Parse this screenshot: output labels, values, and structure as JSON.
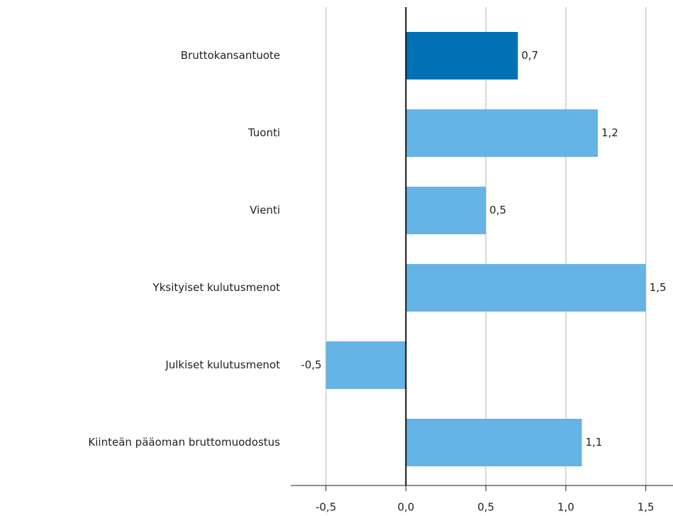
{
  "chart_data": {
    "type": "bar",
    "orientation": "horizontal",
    "categories": [
      "Bruttokansantuote",
      "Tuonti",
      "Vienti",
      "Yksityiset kulutusmenot",
      "Julkiset kulutusmenot",
      "Kiinteän pääoman bruttomuodostus"
    ],
    "values": [
      0.7,
      1.2,
      0.5,
      1.5,
      -0.5,
      1.1
    ],
    "value_labels": [
      "0,7",
      "1,2",
      "0,5",
      "1,5",
      "-0,5",
      "1,1"
    ],
    "colors": [
      "#0071b3",
      "#66b3e5",
      "#66b3e5",
      "#66b3e5",
      "#66b3e5",
      "#66b3e5"
    ],
    "xlim": [
      -0.72,
      1.67
    ],
    "xticks": [
      {
        "value": -0.5,
        "label": "-0,5"
      },
      {
        "value": 0,
        "label": "0,0"
      },
      {
        "value": 0.5,
        "label": "0,5"
      },
      {
        "value": 1,
        "label": "1,0"
      },
      {
        "value": 1.5,
        "label": "1,5"
      }
    ],
    "grid": true
  }
}
